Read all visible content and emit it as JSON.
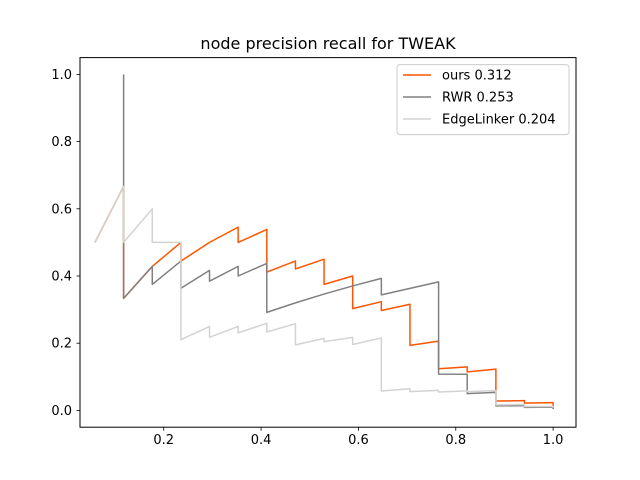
{
  "chart_data": {
    "type": "line",
    "title": "node precision recall for TWEAK",
    "xlabel": "",
    "ylabel": "",
    "xlim": [
      0.028,
      1.047
    ],
    "ylim": [
      -0.05,
      1.05
    ],
    "xticks": [
      0.2,
      0.4,
      0.6,
      0.8,
      1.0
    ],
    "xtick_labels": [
      "0.2",
      "0.4",
      "0.6",
      "0.8",
      "1.0"
    ],
    "yticks": [
      0.0,
      0.2,
      0.4,
      0.6,
      0.8,
      1.0
    ],
    "ytick_labels": [
      "0.0",
      "0.2",
      "0.4",
      "0.6",
      "0.8",
      "1.0"
    ],
    "grid": false,
    "legend_position": "top-right",
    "series": [
      {
        "name": "ours 0.312",
        "color": "#ff5500",
        "x": [
          0.0588,
          0.1176,
          0.1176,
          0.1176,
          0.1765,
          0.2353,
          0.2353,
          0.2941,
          0.3529,
          0.3529,
          0.4118,
          0.4118,
          0.4706,
          0.4706,
          0.5294,
          0.5294,
          0.5882,
          0.5882,
          0.6471,
          0.6471,
          0.7059,
          0.7059,
          0.7647,
          0.7647,
          0.8235,
          0.8235,
          0.8824,
          0.8824,
          0.9412,
          0.9412,
          1.0,
          1.0
        ],
        "y": [
          0.5,
          0.6667,
          0.5,
          0.3333,
          0.4286,
          0.5,
          0.4444,
          0.5,
          0.5455,
          0.5,
          0.5385,
          0.4118,
          0.4444,
          0.4211,
          0.45,
          0.375,
          0.4,
          0.303,
          0.3235,
          0.2973,
          0.3158,
          0.1935,
          0.2063,
          0.1238,
          0.1296,
          0.1148,
          0.123,
          0.0278,
          0.0292,
          0.0217,
          0.023,
          0.005
        ]
      },
      {
        "name": "RWR 0.253",
        "color": "#808080",
        "x": [
          0.1176,
          0.1176,
          0.1176,
          0.1765,
          0.1765,
          0.2353,
          0.2353,
          0.2941,
          0.2941,
          0.3529,
          0.3529,
          0.4118,
          0.4118,
          0.4706,
          0.5294,
          0.5882,
          0.6471,
          0.6471,
          0.7647,
          0.7647,
          0.8235,
          0.8235,
          0.8824,
          0.8824,
          0.9412,
          0.9412,
          1.0,
          1.0
        ],
        "y": [
          1.0,
          0.5,
          0.3333,
          0.4286,
          0.375,
          0.4444,
          0.3636,
          0.4167,
          0.3846,
          0.4286,
          0.4,
          0.4375,
          0.2917,
          0.32,
          0.3462,
          0.3704,
          0.3929,
          0.3438,
          0.3824,
          0.1081,
          0.1077,
          0.05,
          0.0536,
          0.0133,
          0.0141,
          0.0091,
          0.0097,
          0.004
        ]
      },
      {
        "name": "EdgeLinker 0.204",
        "color": "#d3d3d3",
        "x": [
          0.0588,
          0.1176,
          0.1176,
          0.1765,
          0.1765,
          0.2353,
          0.2353,
          0.2941,
          0.2941,
          0.3529,
          0.3529,
          0.4118,
          0.4118,
          0.4706,
          0.4706,
          0.5294,
          0.5294,
          0.5882,
          0.5882,
          0.6471,
          0.6471,
          0.7059,
          0.7059,
          0.7647,
          0.7647,
          0.8235,
          0.8235,
          0.8824,
          0.8824,
          0.9412,
          0.9412,
          1.0,
          1.0
        ],
        "y": [
          0.5,
          0.6667,
          0.5,
          0.6,
          0.5,
          0.5,
          0.2105,
          0.25,
          0.2174,
          0.25,
          0.2308,
          0.2593,
          0.2333,
          0.2581,
          0.1951,
          0.2143,
          0.2045,
          0.2174,
          0.1961,
          0.2157,
          0.0579,
          0.0645,
          0.0559,
          0.0596,
          0.0548,
          0.0581,
          0.056,
          0.0588,
          0.0165,
          0.0174,
          0.0115,
          0.0121,
          0.008
        ]
      }
    ]
  }
}
